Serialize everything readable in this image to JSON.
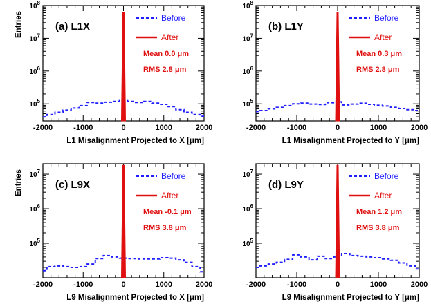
{
  "colors": {
    "before": "#1f1fff",
    "after": "#e01010",
    "frame": "#000000"
  },
  "chart_data": [
    {
      "type": "line",
      "panel_label": "(a) L1X",
      "xlabel": "L1 Misalignment Projected to X [μm]",
      "ylabel": "Entries",
      "xlim": [
        -2000,
        2000
      ],
      "ylim": [
        30000,
        100000000
      ],
      "yscale": "log",
      "xticks": [
        -2000,
        -1000,
        0,
        1000,
        2000
      ],
      "xtick_labels": [
        "-2000",
        "-1000",
        "0",
        "1000",
        "2000"
      ],
      "yticks": [
        100000,
        1000000,
        10000000,
        100000000
      ],
      "ytick_labels": [
        "10^5",
        "10^6",
        "10^7",
        "10^8"
      ],
      "legend": [
        "Before",
        "After"
      ],
      "stats": {
        "mean": "Mean 0.0  μm",
        "rms": "RMS 2.8  μm"
      },
      "series": [
        {
          "name": "Before",
          "style": "dashed",
          "x": [
            -2000,
            -1800,
            -1600,
            -1400,
            -1200,
            -1000,
            -800,
            -600,
            -400,
            -200,
            0,
            200,
            400,
            600,
            800,
            1000,
            1200,
            1400,
            1600,
            1800,
            2000
          ],
          "values": [
            40000,
            47000,
            55000,
            64000,
            74000,
            88000,
            110000,
            105000,
            112000,
            118000,
            125000,
            118000,
            110000,
            118000,
            105000,
            96000,
            82000,
            66000,
            55000,
            47000,
            42000
          ]
        },
        {
          "name": "After",
          "style": "solid",
          "x": [
            0
          ],
          "values": [
            60000000
          ]
        }
      ]
    },
    {
      "type": "line",
      "panel_label": "(b) L1Y",
      "xlabel": "L1 Misalignment Projected to Y [μm]",
      "ylabel": "",
      "xlim": [
        -2000,
        2000
      ],
      "ylim": [
        30000,
        100000000
      ],
      "yscale": "log",
      "xticks": [
        -2000,
        -1000,
        0,
        1000,
        2000
      ],
      "xtick_labels": [
        "-2000",
        "-1000",
        "0",
        "1000",
        "2000"
      ],
      "yticks": [
        100000,
        1000000,
        10000000,
        100000000
      ],
      "ytick_labels": [
        "10^5",
        "10^6",
        "10^7",
        "10^8"
      ],
      "legend": [
        "Before",
        "After"
      ],
      "stats": {
        "mean": "Mean 0.3  μm",
        "rms": "RMS 2.8  μm"
      },
      "series": [
        {
          "name": "Before",
          "style": "dashed",
          "x": [
            -2000,
            -1800,
            -1600,
            -1400,
            -1200,
            -1000,
            -800,
            -600,
            -400,
            -200,
            0,
            200,
            400,
            600,
            800,
            1000,
            1200,
            1400,
            1600,
            1800,
            2000
          ],
          "values": [
            58000,
            62000,
            70000,
            78000,
            88000,
            100000,
            105000,
            98000,
            95000,
            108000,
            115000,
            92000,
            98000,
            104000,
            96000,
            90000,
            86000,
            78000,
            72000,
            66000,
            62000
          ]
        },
        {
          "name": "After",
          "style": "solid",
          "x": [
            0
          ],
          "values": [
            60000000
          ]
        }
      ]
    },
    {
      "type": "line",
      "panel_label": "(c) L9X",
      "xlabel": "L9 Misalignment Projected to X [μm]",
      "ylabel": "Entries",
      "xlim": [
        -2000,
        2000
      ],
      "ylim": [
        10000,
        20000000
      ],
      "yscale": "log",
      "xticks": [
        -2000,
        -1000,
        0,
        1000,
        2000
      ],
      "xtick_labels": [
        "-2000",
        "-1000",
        "0",
        "1000",
        "2000"
      ],
      "yticks": [
        100000,
        1000000,
        10000000
      ],
      "ytick_labels": [
        "10^5",
        "10^6",
        "10^7"
      ],
      "legend": [
        "Before",
        "After"
      ],
      "stats": {
        "mean": "Mean -0.1  μm",
        "rms": "RMS 3.8  μm"
      },
      "series": [
        {
          "name": "Before",
          "style": "dashed",
          "x": [
            -2000,
            -1800,
            -1600,
            -1400,
            -1200,
            -1000,
            -800,
            -600,
            -400,
            -200,
            0,
            200,
            400,
            600,
            800,
            1000,
            1200,
            1400,
            1600,
            1800,
            2000
          ],
          "values": [
            16000,
            21000,
            22000,
            21000,
            20000,
            21000,
            25000,
            36000,
            44000,
            40000,
            37000,
            36000,
            35000,
            35000,
            35000,
            38000,
            37000,
            33000,
            28000,
            21000,
            15000
          ]
        },
        {
          "name": "After",
          "style": "solid",
          "x": [
            0
          ],
          "values": [
            18000000
          ]
        }
      ]
    },
    {
      "type": "line",
      "panel_label": "(d) L9Y",
      "xlabel": "L9 Misalignment Projected to Y [μm]",
      "ylabel": "",
      "xlim": [
        -2000,
        2000
      ],
      "ylim": [
        10000,
        20000000
      ],
      "yscale": "log",
      "xticks": [
        -2000,
        -1000,
        0,
        1000,
        2000
      ],
      "xtick_labels": [
        "-2000",
        "-1000",
        "0",
        "1000",
        "2000"
      ],
      "yticks": [
        100000,
        1000000,
        10000000
      ],
      "ytick_labels": [
        "10^5",
        "10^6",
        "10^7"
      ],
      "legend": [
        "Before",
        "After"
      ],
      "stats": {
        "mean": "Mean 1.2  μm",
        "rms": "RMS 3.8  μm"
      },
      "series": [
        {
          "name": "Before",
          "style": "dashed",
          "x": [
            -2000,
            -1800,
            -1600,
            -1400,
            -1200,
            -1000,
            -800,
            -600,
            -400,
            -200,
            0,
            200,
            400,
            600,
            800,
            1000,
            1200,
            1400,
            1600,
            1800,
            2000
          ],
          "values": [
            20000,
            22000,
            25000,
            28000,
            34000,
            46000,
            40000,
            33000,
            42000,
            36000,
            40000,
            50000,
            44000,
            42000,
            40000,
            38000,
            35000,
            32000,
            27000,
            22000,
            18000
          ]
        },
        {
          "name": "After",
          "style": "solid",
          "x": [
            0
          ],
          "values": [
            18000000
          ]
        }
      ]
    }
  ]
}
